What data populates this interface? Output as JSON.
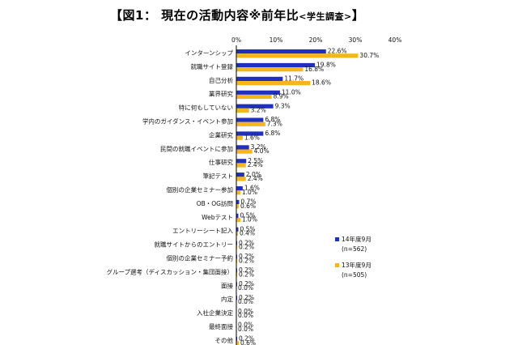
{
  "title": {
    "prefix": "【",
    "main": "図1： 現在の活動内容※前年比",
    "sub": "<学生調査>",
    "suffix": "】"
  },
  "chart_data": {
    "type": "bar",
    "orientation": "horizontal",
    "categories": [
      "インターンシップ",
      "就職サイト登録",
      "自己分析",
      "業界研究",
      "特に何もしていない",
      "学内のガイダンス・イベント参加",
      "企業研究",
      "民間の就職イベントに参加",
      "仕事研究",
      "筆記テスト",
      "個別の企業セミナー参加",
      "OB・OG訪問",
      "Webテスト",
      "エントリーシート記入",
      "就職サイトからのエントリー",
      "個別の企業セミナー予約",
      "グループ選考（ディスカッション・集団面接）",
      "面接",
      "内定",
      "入社企業決定",
      "最終面接",
      "その他"
    ],
    "series": [
      {
        "name": "14年度9月",
        "n_label": "(n=562)",
        "color": "#1f2fbf",
        "values": [
          22.6,
          19.8,
          11.7,
          11.0,
          9.3,
          6.8,
          6.8,
          3.2,
          2.5,
          2.0,
          1.6,
          0.7,
          0.5,
          0.5,
          0.2,
          0.2,
          0.2,
          0.2,
          0.2,
          0.0,
          0.0,
          0.2
        ],
        "labels": [
          "22.6%",
          "19.8%",
          "11.7%",
          "11.0%",
          "9.3%",
          "6.8%",
          "6.8%",
          "3.2%",
          "2.5%",
          "2.0%",
          "1.6%",
          "0.7%",
          "0.5%",
          "0.5%",
          "0.2%",
          "0.2%",
          "0.2%",
          "0.2%",
          "0.2%",
          "0.0%",
          "0.0%",
          "0.2%"
        ]
      },
      {
        "name": "13年度9月",
        "n_label": "(n=505)",
        "color": "#f5b51c",
        "values": [
          30.7,
          16.8,
          18.6,
          8.9,
          3.2,
          7.3,
          1.6,
          4.0,
          2.4,
          2.4,
          1.0,
          0.6,
          1.0,
          0.4,
          0.2,
          0.2,
          0.2,
          0.0,
          0.0,
          0.0,
          0.0,
          0.6
        ],
        "labels": [
          "30.7%",
          "16.8%",
          "18.6%",
          "8.9%",
          "3.2%",
          "7.3%",
          "1.6%",
          "4.0%",
          "2.4%",
          "2.4%",
          "1.0%",
          "0.6%",
          "1.0%",
          "0.4%",
          "0.2%",
          "0.2%",
          "0.2%",
          "0.0%",
          "0.0%",
          "0.0%",
          "0.0%",
          "0.6%"
        ]
      }
    ],
    "xlim": [
      0,
      40
    ],
    "xticks": [
      "0%",
      "10%",
      "20%",
      "30%",
      "40%"
    ],
    "xtick_values": [
      0,
      10,
      20,
      30,
      40
    ],
    "grid": false,
    "legend_position": "right"
  }
}
